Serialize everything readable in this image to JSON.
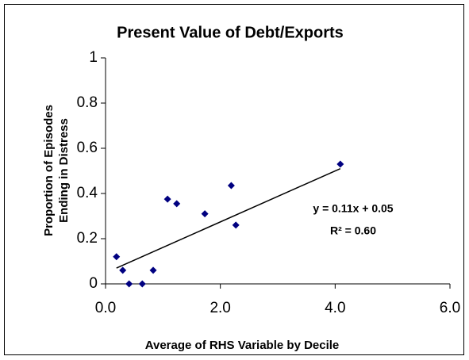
{
  "chart_data": {
    "type": "scatter",
    "title": "Present Value of Debt/Exports",
    "xlabel": "Average of RHS Variable by Decile",
    "ylabel": [
      "Proportion of Episodes",
      "Ending in Distress"
    ],
    "x": [
      0.19,
      0.3,
      0.41,
      0.64,
      0.83,
      1.08,
      1.24,
      1.73,
      2.19,
      2.27,
      4.09
    ],
    "values": [
      0.12,
      0.06,
      0,
      0,
      0.06,
      0.375,
      0.355,
      0.31,
      0.435,
      0.26,
      0.53
    ],
    "color": "#000080",
    "trendline": {
      "x": [
        0.19,
        4.09
      ],
      "values": [
        0.07,
        0.51
      ],
      "color": "#000000"
    },
    "annotations": [
      "y = 0.11x + 0.05",
      "R² = 0.60"
    ],
    "xlim": [
      0,
      6
    ],
    "xticks": [
      {
        "value": 0,
        "label": "0.0"
      },
      {
        "value": 2,
        "label": "2.0"
      },
      {
        "value": 4,
        "label": "4.0"
      },
      {
        "value": 6,
        "label": "6.0"
      }
    ],
    "ylim": [
      0,
      1
    ],
    "yticks": [
      0,
      0.2,
      0.4,
      0.6,
      0.8,
      1
    ],
    "grid": false
  }
}
